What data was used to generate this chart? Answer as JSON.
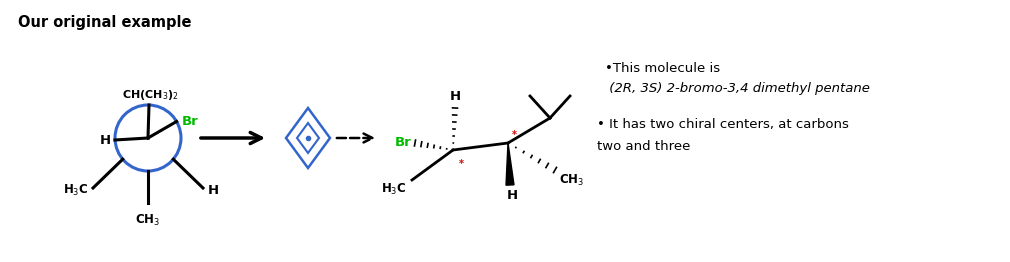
{
  "title": "Our original example",
  "text_color": "#000000",
  "green_color": "#00bb00",
  "blue_color": "#3366cc",
  "red_color": "#cc0000",
  "bg_color": "#ffffff",
  "right_text_line1": "•This molecule is",
  "right_text_line2": " (2R, 3S) 2-bromo-3,4 dimethyl pentane",
  "right_text_line3": "• It has two chiral centers, at carbons",
  "right_text_line4": "two and three"
}
